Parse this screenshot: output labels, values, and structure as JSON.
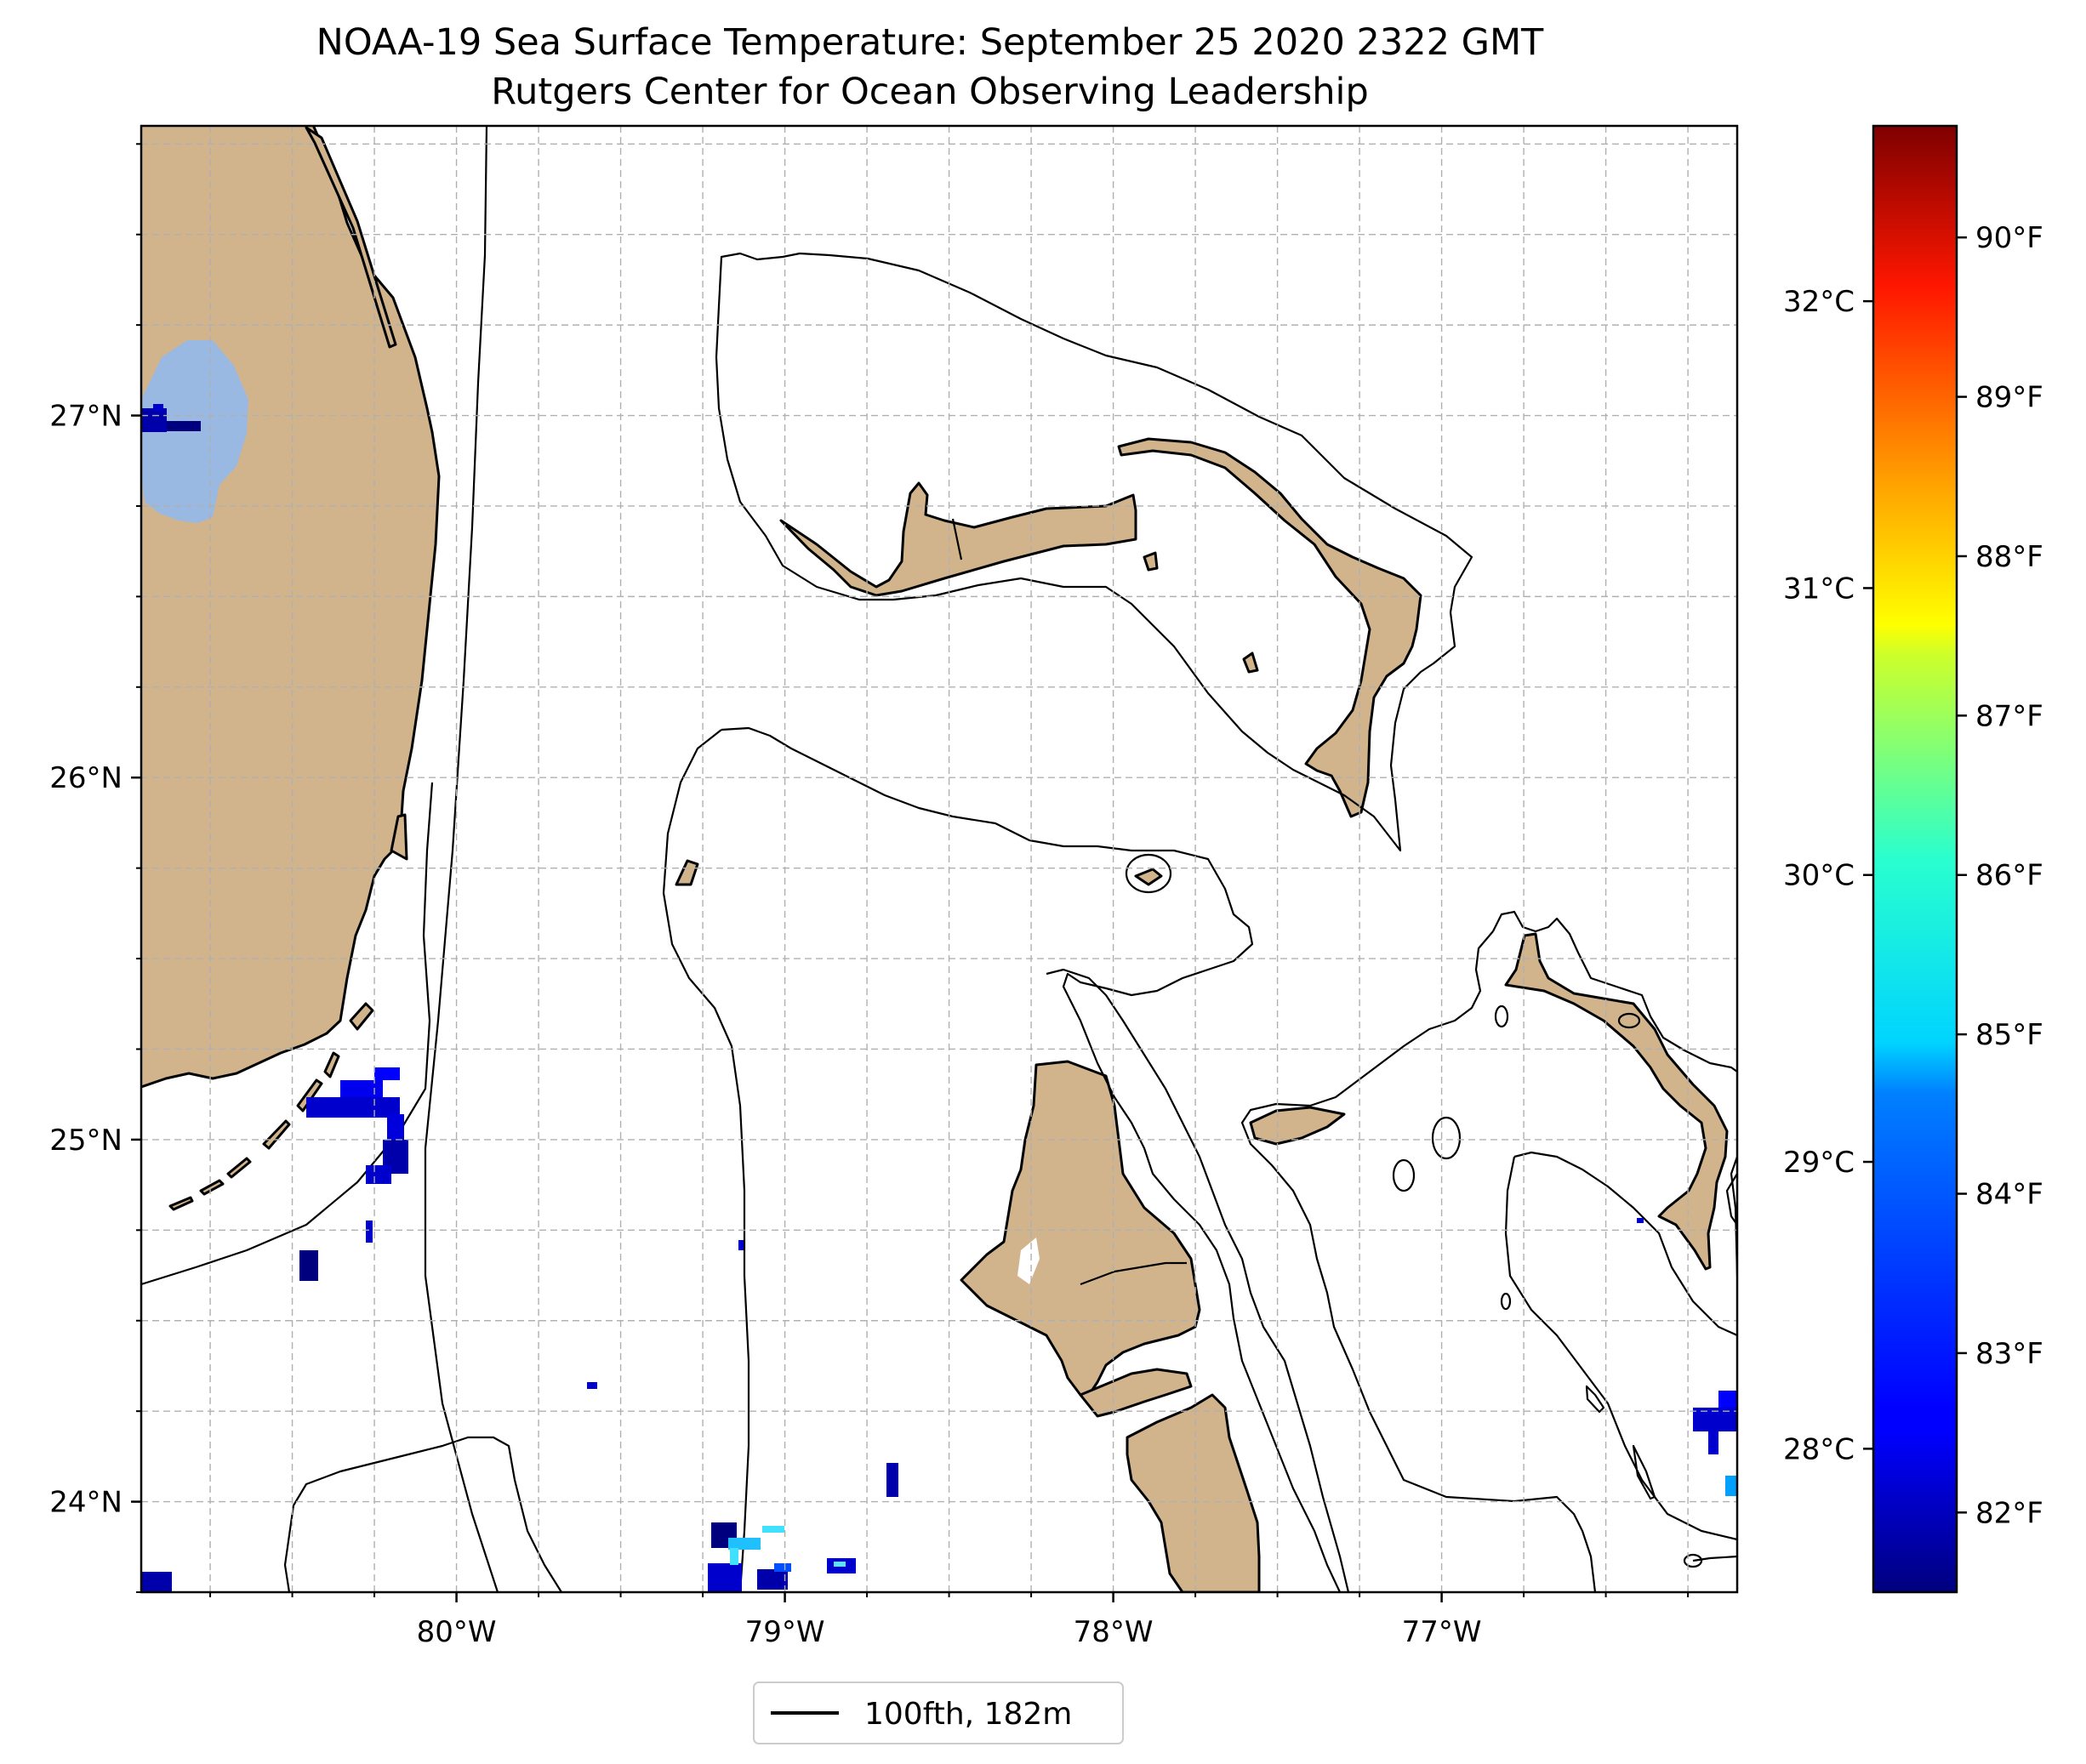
{
  "title": {
    "line1": "NOAA-19 Sea Surface Temperature: September 25 2020 2322 GMT",
    "line2": "Rutgers Center for Ocean Observing Leadership"
  },
  "map": {
    "extent": {
      "lon_min": -80.96,
      "lon_max": -76.1,
      "lat_min": 23.75,
      "lat_max": 27.8
    },
    "lon_ticks": [
      {
        "value": -80,
        "label": "80°W"
      },
      {
        "value": -79,
        "label": "79°W"
      },
      {
        "value": -78,
        "label": "78°W"
      },
      {
        "value": -77,
        "label": "77°W"
      }
    ],
    "lat_ticks": [
      {
        "value": 27,
        "label": "27°N"
      },
      {
        "value": 26,
        "label": "26°N"
      },
      {
        "value": 25,
        "label": "25°N"
      },
      {
        "value": 24,
        "label": "24°N"
      }
    ],
    "gridlines": true,
    "land_color": "#d2b48c",
    "lake_color": "#9ab9e2",
    "missing_data_color": "#ffffff"
  },
  "legend": {
    "label": "100fth, 182m",
    "placement": "below-center",
    "line_color": "#000000"
  },
  "colorbar": {
    "colormap": "jet",
    "min_f": 81.5,
    "max_f": 90.7,
    "fahrenheit_ticks": [
      {
        "value": 82,
        "label": "82°F"
      },
      {
        "value": 83,
        "label": "83°F"
      },
      {
        "value": 84,
        "label": "84°F"
      },
      {
        "value": 85,
        "label": "85°F"
      },
      {
        "value": 86,
        "label": "86°F"
      },
      {
        "value": 87,
        "label": "87°F"
      },
      {
        "value": 88,
        "label": "88°F"
      },
      {
        "value": 89,
        "label": "89°F"
      },
      {
        "value": 90,
        "label": "90°F"
      }
    ],
    "celsius_ticks": [
      {
        "value": 28,
        "label": "28°C"
      },
      {
        "value": 29,
        "label": "29°C"
      },
      {
        "value": 30,
        "label": "30°C"
      },
      {
        "value": 31,
        "label": "31°C"
      },
      {
        "value": 32,
        "label": "32°C"
      }
    ]
  }
}
